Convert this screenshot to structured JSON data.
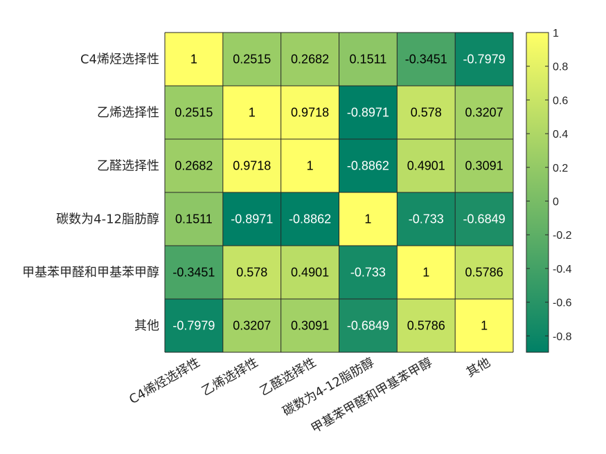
{
  "chart_data": {
    "type": "heatmap",
    "title": "",
    "rows": [
      "C4烯烃选择性",
      "乙烯选择性",
      "乙醛选择性",
      "碳数为4-12脂肪醇",
      "甲基苯甲醛和甲基苯甲醇",
      "其他"
    ],
    "columns": [
      "C4烯烃选择性",
      "乙烯选择性",
      "乙醛选择性",
      "碳数为4-12脂肪醇",
      "甲基苯甲醛和甲基苯甲醇",
      "其他"
    ],
    "values": [
      [
        1,
        0.2515,
        0.2682,
        0.1511,
        -0.3451,
        -0.7979
      ],
      [
        0.2515,
        1,
        0.9718,
        -0.8971,
        0.578,
        0.3207
      ],
      [
        0.2682,
        0.9718,
        1,
        -0.8862,
        0.4901,
        0.3091
      ],
      [
        0.1511,
        -0.8971,
        -0.8862,
        1,
        -0.733,
        -0.6849
      ],
      [
        -0.3451,
        0.578,
        0.4901,
        -0.733,
        1,
        0.5786
      ],
      [
        -0.7979,
        0.3207,
        0.3091,
        -0.6849,
        0.5786,
        1
      ]
    ],
    "value_labels": [
      [
        "1",
        "0.2515",
        "0.2682",
        "0.1511",
        "-0.3451",
        "-0.7979"
      ],
      [
        "0.2515",
        "1",
        "0.9718",
        "-0.8971",
        "0.578",
        "0.3207"
      ],
      [
        "0.2682",
        "0.9718",
        "1",
        "-0.8862",
        "0.4901",
        "0.3091"
      ],
      [
        "0.1511",
        "-0.8971",
        "-0.8862",
        "1",
        "-0.733",
        "-0.6849"
      ],
      [
        "-0.3451",
        "0.578",
        "0.4901",
        "-0.733",
        "1",
        "0.5786"
      ],
      [
        "-0.7979",
        "0.3207",
        "0.3091",
        "-0.6849",
        "0.5786",
        "1"
      ]
    ],
    "colorbar": {
      "range": [
        -0.8971,
        1
      ],
      "ticks": [
        -0.8,
        -0.6,
        -0.4,
        -0.2,
        0,
        0.2,
        0.4,
        0.6,
        0.8,
        1
      ],
      "tick_labels": [
        "-0.8",
        "-0.6",
        "-0.4",
        "-0.2",
        "0",
        "0.2",
        "0.4",
        "0.6",
        "0.8",
        "1"
      ],
      "colormap": "summer",
      "placement": "right"
    },
    "colors": {
      "low": "#008066",
      "high": "#ffff66"
    }
  }
}
